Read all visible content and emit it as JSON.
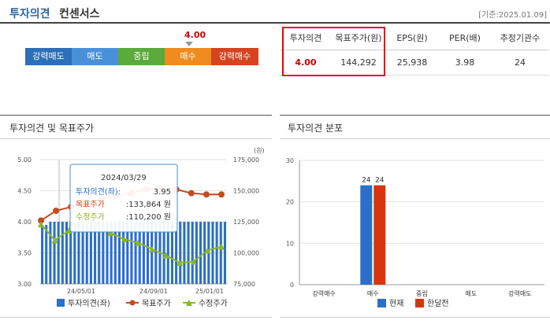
{
  "header": {
    "title_main": "투자의견",
    "title_sub": "컨센서스",
    "date": "[기준:2025.01.09]"
  },
  "opinion_scale": {
    "current_value": "4.00",
    "current_index": 3,
    "items": [
      {
        "label": "강력매도",
        "color": "#2d6fb8"
      },
      {
        "label": "매도",
        "color": "#4a90d9"
      },
      {
        "label": "중립",
        "color": "#5aaa3c"
      },
      {
        "label": "매수",
        "color": "#f08c1e"
      },
      {
        "label": "강력매수",
        "color": "#d6431f"
      }
    ]
  },
  "summary": {
    "headers": [
      "투자의견",
      "목표주가(원)",
      "EPS(원)",
      "PER(배)",
      "추정기관수"
    ],
    "values": [
      "4.00",
      "144,292",
      "25,938",
      "3.98",
      "24"
    ]
  },
  "panels": {
    "trend_title": "투자의견 및 목표주가",
    "dist_title": "투자의견 분포"
  },
  "tooltip": {
    "date": "2024/03/29",
    "rows": [
      {
        "label": "투자의견(좌):",
        "value": "3.95",
        "color": "#2b6fcb"
      },
      {
        "label": "목표주가",
        "value": ":133,864 원",
        "color": "#c64a1e"
      },
      {
        "label": "수정주가",
        "value": ":110,200 원",
        "color": "#8ab62a"
      }
    ]
  },
  "chart_data": [
    {
      "type": "bar+line",
      "title": "투자의견 및 목표주가",
      "y_left": {
        "ylim": [
          3.0,
          5.0
        ],
        "ticks": [
          "5.00",
          "4.50",
          "4.00",
          "3.50",
          "3.00"
        ]
      },
      "y_right": {
        "unit": "(원)",
        "ylim": [
          75000,
          175000
        ],
        "ticks": [
          "175,000",
          "150,000",
          "125,000",
          "100,000",
          "75,000"
        ]
      },
      "x_ticks": [
        "24/05/01",
        "24/09/01",
        "25/01/01"
      ],
      "series": [
        {
          "name": "투자의견(좌)",
          "type": "bar",
          "color": "#2b6fcb",
          "values": [
            3.95,
            3.95,
            4.0,
            4.0,
            4.0,
            4.0,
            4.0,
            4.0,
            4.0,
            4.0,
            4.0,
            4.0,
            4.0,
            4.0,
            4.0,
            4.0,
            4.0,
            4.0,
            4.0,
            4.0,
            4.0,
            4.0,
            4.0,
            4.0,
            4.0,
            4.0,
            4.0,
            4.0,
            4.0,
            4.0,
            4.0,
            4.0,
            4.0,
            4.0,
            4.0,
            4.0,
            4.0,
            4.0,
            4.0,
            4.0,
            4.0,
            4.0,
            4.0,
            4.0,
            4.0,
            4.0
          ]
        },
        {
          "name": "목표주가",
          "type": "line",
          "color": "#c64a1e",
          "values": [
            126000,
            133864,
            137000,
            140000,
            143000,
            146000,
            148000,
            151000,
            152000,
            151000,
            148000,
            147000,
            147000
          ]
        },
        {
          "name": "수정주가",
          "type": "line",
          "color": "#8ab62a",
          "values": [
            123000,
            110200,
            118000,
            126000,
            122000,
            116000,
            111000,
            108000,
            103000,
            98000,
            92000,
            93000,
            102000,
            105000
          ]
        }
      ]
    },
    {
      "type": "bar",
      "title": "투자의견 분포",
      "categories": [
        "강력매수",
        "매수",
        "중립",
        "매도",
        "강력매도"
      ],
      "ylim": [
        0,
        30
      ],
      "y_ticks": [
        "30",
        "20",
        "10",
        "0"
      ],
      "series": [
        {
          "name": "현재",
          "color": "#2b6fcb",
          "values": [
            0,
            24,
            0,
            0,
            0
          ]
        },
        {
          "name": "한달전",
          "color": "#d6350f",
          "values": [
            0,
            24,
            0,
            0,
            0
          ]
        }
      ]
    }
  ]
}
